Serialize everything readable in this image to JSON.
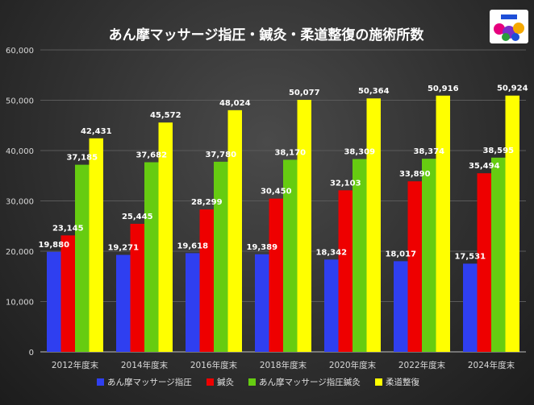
{
  "chart_data": {
    "type": "bar",
    "title": "あん摩マッサージ指圧・鍼灸・柔道整復の施術所数",
    "xlabel": "",
    "ylabel": "",
    "ylim": [
      0,
      60000
    ],
    "yticks": [
      0,
      10000,
      20000,
      30000,
      40000,
      50000,
      60000
    ],
    "ytick_labels": [
      "0",
      "10,000",
      "20,000",
      "30,000",
      "40,000",
      "50,000",
      "60,000"
    ],
    "grid": true,
    "legend_position": "bottom",
    "categories": [
      "2012年度末",
      "2014年度末",
      "2016年度末",
      "2018年度末",
      "2020年度末",
      "2022年度末",
      "2024年度末"
    ],
    "series": [
      {
        "name": "あん摩マッサージ指圧",
        "color": "#2f3ff0",
        "values": [
          19880,
          19271,
          19618,
          19389,
          18342,
          18017,
          17531
        ]
      },
      {
        "name": "鍼灸",
        "color": "#ee0000",
        "values": [
          23145,
          25445,
          28299,
          30450,
          32103,
          33890,
          35494
        ]
      },
      {
        "name": "あん摩マッサージ指圧鍼灸",
        "color": "#66cc11",
        "values": [
          37185,
          37682,
          37780,
          38170,
          38309,
          38374,
          38595
        ]
      },
      {
        "name": "柔道整復",
        "color": "#ffff00",
        "values": [
          42431,
          45572,
          48024,
          50077,
          50364,
          50916,
          50924
        ]
      }
    ]
  },
  "logo": {
    "name": "logo-icon",
    "colors": [
      "#e6007e",
      "#1e4fd8",
      "#f5a800",
      "#2a9d3a",
      "#7a2fc9"
    ]
  }
}
